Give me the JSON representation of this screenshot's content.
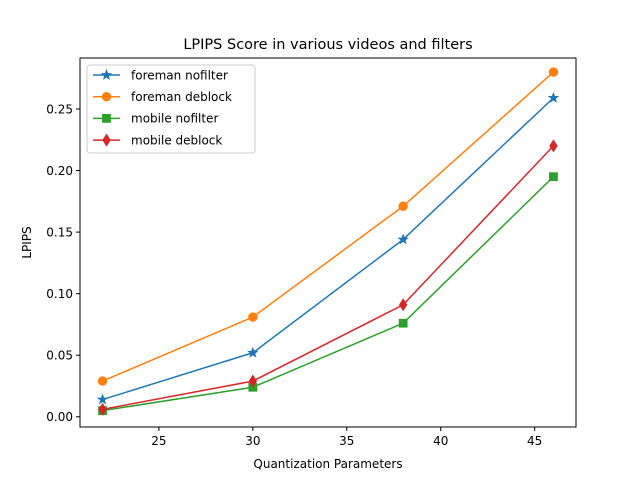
{
  "chart_data": {
    "type": "line",
    "title": "LPIPS Score in various videos and filters",
    "xlabel": "Quantization Parameters",
    "ylabel": "LPIPS",
    "x": [
      22,
      30,
      38,
      46
    ],
    "xlim": [
      20.8,
      47.2
    ],
    "ylim": [
      -0.0083,
      0.2914
    ],
    "xticks": [
      25,
      30,
      35,
      40,
      45
    ],
    "xtick_labels": [
      "25",
      "30",
      "35",
      "40",
      "45"
    ],
    "yticks": [
      0.0,
      0.05,
      0.1,
      0.15,
      0.2,
      0.25
    ],
    "ytick_labels": [
      "0.00",
      "0.05",
      "0.10",
      "0.15",
      "0.20",
      "0.25"
    ],
    "grid": false,
    "legend_position": "top-left",
    "series": [
      {
        "name": "foreman nofilter",
        "values": [
          0.014,
          0.052,
          0.144,
          0.259
        ],
        "color": "#1f77b4",
        "marker": "star"
      },
      {
        "name": "foreman deblock",
        "values": [
          0.029,
          0.081,
          0.171,
          0.28
        ],
        "color": "#ff7f0e",
        "marker": "circle"
      },
      {
        "name": "mobile nofilter",
        "values": [
          0.005,
          0.024,
          0.076,
          0.195
        ],
        "color": "#2ca02c",
        "marker": "square"
      },
      {
        "name": "mobile deblock",
        "values": [
          0.006,
          0.029,
          0.091,
          0.22
        ],
        "color": "#d62728",
        "marker": "diamond"
      }
    ]
  }
}
